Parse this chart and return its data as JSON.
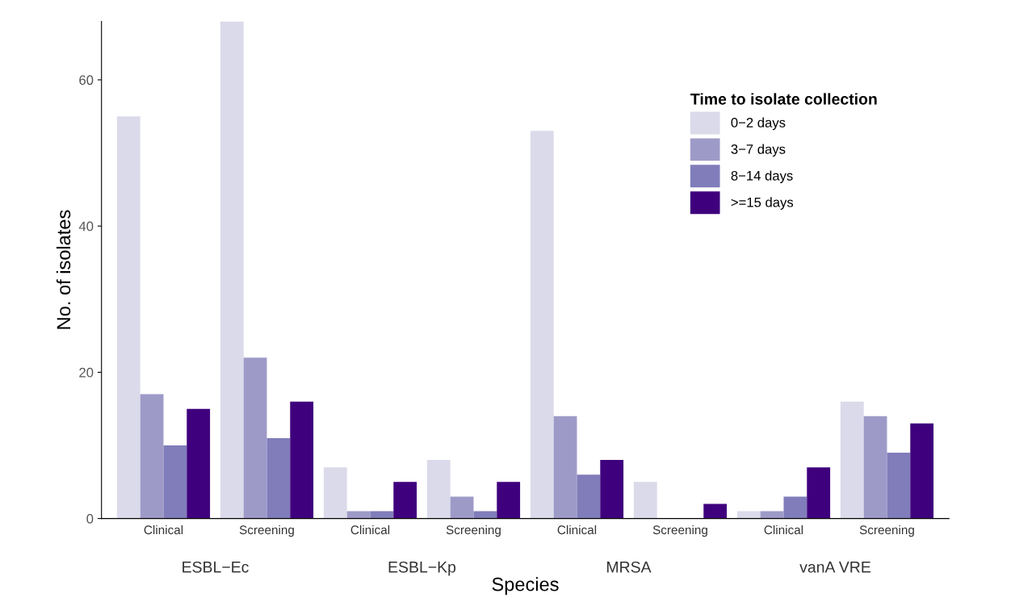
{
  "chart_data": {
    "type": "bar",
    "xlabel": "Species",
    "ylabel": "No. of isolates",
    "legend_title": "Time to isolate collection",
    "categories": [
      "Clinical",
      "Screening",
      "Clinical",
      "Screening",
      "Clinical",
      "Screening",
      "Clinical",
      "Screening"
    ],
    "annotations": [
      "ESBL−Ec",
      "ESBL−Kp",
      "MRSA",
      "vanA VRE"
    ],
    "series": [
      {
        "name": "0−2 days",
        "color": "#dadaeb",
        "values": [
          55,
          68,
          7,
          8,
          53,
          5,
          1,
          16
        ]
      },
      {
        "name": "3−7 days",
        "color": "#9e9ac8",
        "values": [
          17,
          22,
          1,
          3,
          14,
          0,
          1,
          14
        ]
      },
      {
        "name": "8−14 days",
        "color": "#807dba",
        "values": [
          10,
          11,
          1,
          1,
          6,
          0,
          3,
          9
        ]
      },
      {
        "name": ">=15 days",
        "color": "#3f007d",
        "values": [
          15,
          16,
          5,
          5,
          8,
          2,
          7,
          13
        ]
      }
    ],
    "ylim": [
      0,
      68
    ],
    "yticks": [
      0,
      20,
      40,
      60
    ],
    "grid": false,
    "legend": "top right"
  }
}
